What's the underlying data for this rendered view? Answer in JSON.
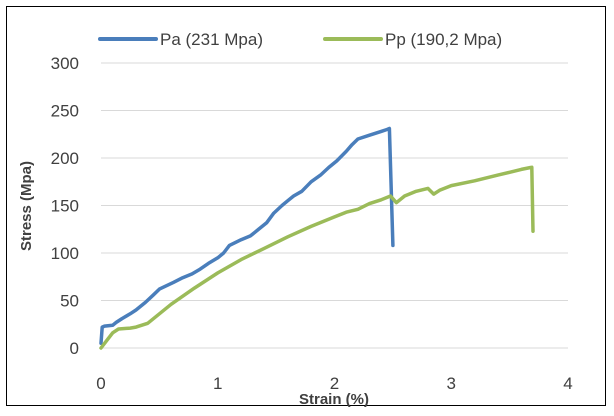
{
  "chart_data": {
    "type": "line",
    "title": "",
    "xlabel": "Strain (%)",
    "ylabel": "Stress (Mpa)",
    "xlim": [
      0,
      4
    ],
    "ylim": [
      0,
      300
    ],
    "x_ticks": [
      0,
      1,
      2,
      3,
      4
    ],
    "y_ticks": [
      0,
      50,
      100,
      150,
      200,
      250,
      300
    ],
    "grid": "horizontal",
    "legend_position": "top",
    "series": [
      {
        "name": "Pa (231 Mpa)",
        "color": "#4a7ebb",
        "points": [
          [
            0.0,
            5
          ],
          [
            0.01,
            22
          ],
          [
            0.03,
            23
          ],
          [
            0.1,
            24
          ],
          [
            0.13,
            27
          ],
          [
            0.18,
            31
          ],
          [
            0.25,
            36
          ],
          [
            0.3,
            40
          ],
          [
            0.38,
            48
          ],
          [
            0.45,
            56
          ],
          [
            0.5,
            62
          ],
          [
            0.55,
            65
          ],
          [
            0.62,
            69
          ],
          [
            0.7,
            74
          ],
          [
            0.78,
            78
          ],
          [
            0.85,
            83
          ],
          [
            0.92,
            89
          ],
          [
            1.0,
            95
          ],
          [
            1.05,
            100
          ],
          [
            1.1,
            108
          ],
          [
            1.2,
            114
          ],
          [
            1.28,
            118
          ],
          [
            1.35,
            125
          ],
          [
            1.42,
            132
          ],
          [
            1.48,
            142
          ],
          [
            1.55,
            150
          ],
          [
            1.6,
            155
          ],
          [
            1.65,
            160
          ],
          [
            1.72,
            165
          ],
          [
            1.8,
            175
          ],
          [
            1.88,
            182
          ],
          [
            1.95,
            190
          ],
          [
            2.02,
            197
          ],
          [
            2.1,
            207
          ],
          [
            2.15,
            214
          ],
          [
            2.2,
            220
          ],
          [
            2.3,
            224
          ],
          [
            2.4,
            228
          ],
          [
            2.45,
            230
          ],
          [
            2.47,
            231
          ],
          [
            2.5,
            108
          ]
        ]
      },
      {
        "name": "Pp (190,2 Mpa)",
        "color": "#9bbb59",
        "points": [
          [
            0.0,
            0
          ],
          [
            0.05,
            8
          ],
          [
            0.1,
            16
          ],
          [
            0.15,
            20
          ],
          [
            0.25,
            21
          ],
          [
            0.3,
            22
          ],
          [
            0.4,
            26
          ],
          [
            0.5,
            36
          ],
          [
            0.6,
            46
          ],
          [
            0.8,
            63
          ],
          [
            1.0,
            79
          ],
          [
            1.2,
            93
          ],
          [
            1.4,
            105
          ],
          [
            1.6,
            117
          ],
          [
            1.8,
            128
          ],
          [
            2.0,
            138
          ],
          [
            2.1,
            143
          ],
          [
            2.2,
            146
          ],
          [
            2.3,
            152
          ],
          [
            2.4,
            156
          ],
          [
            2.48,
            160
          ],
          [
            2.53,
            153
          ],
          [
            2.6,
            160
          ],
          [
            2.7,
            165
          ],
          [
            2.8,
            168
          ],
          [
            2.85,
            162
          ],
          [
            2.9,
            166
          ],
          [
            3.0,
            171
          ],
          [
            3.2,
            176
          ],
          [
            3.4,
            182
          ],
          [
            3.5,
            185
          ],
          [
            3.6,
            188
          ],
          [
            3.68,
            190
          ],
          [
            3.69,
            190.2
          ],
          [
            3.7,
            123
          ]
        ]
      }
    ]
  }
}
